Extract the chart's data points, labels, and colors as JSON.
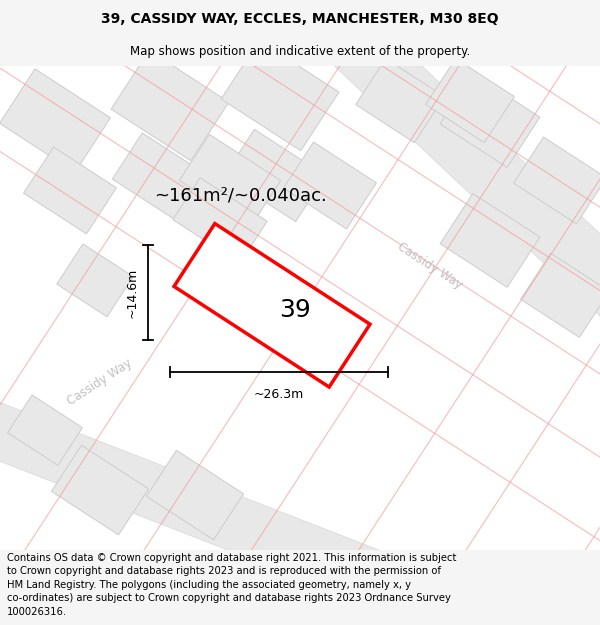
{
  "title": "39, CASSIDY WAY, ECCLES, MANCHESTER, M30 8EQ",
  "subtitle": "Map shows position and indicative extent of the property.",
  "area_label": "~161m²/~0.040ac.",
  "property_number": "39",
  "width_label": "~26.3m",
  "height_label": "~14.6m",
  "footer_line1": "Contains OS data © Crown copyright and database right 2021. This information is subject",
  "footer_line2": "to Crown copyright and database rights 2023 and is reproduced with the permission of",
  "footer_line3": "HM Land Registry. The polygons (including the associated geometry, namely x, y",
  "footer_line4": "co-ordinates) are subject to Crown copyright and database rights 2023 Ordnance Survey",
  "footer_line5": "100026316.",
  "bg_color": "#f5f5f5",
  "map_bg": "#ffffff",
  "block_fill": "#e8e8e8",
  "block_edge": "#cccccc",
  "road_fill": "#f0f0f0",
  "pink_line": "#f0a0a0",
  "plot_stroke": "#ff0000",
  "plot_fill": "#ffffff",
  "road_label_color": "#c0c0c0",
  "ang": 33,
  "title_fontsize": 10,
  "subtitle_fontsize": 8.5,
  "area_fontsize": 13,
  "number_fontsize": 18,
  "dim_fontsize": 9,
  "road_label_fontsize": 8.5,
  "footer_fontsize": 7.2
}
